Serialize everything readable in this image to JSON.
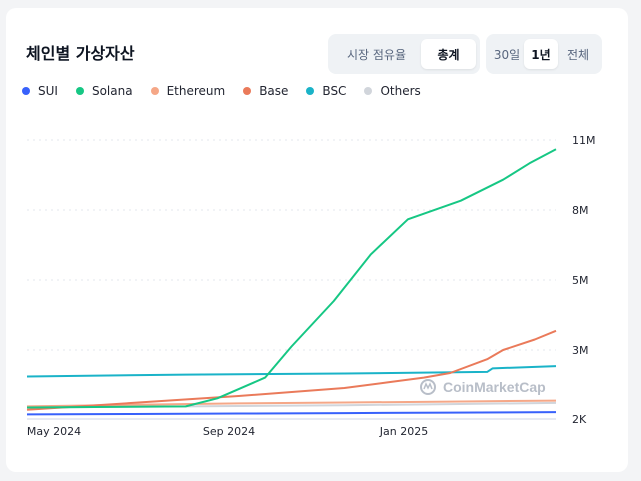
{
  "header": {
    "title": "체인별 가상자산",
    "view_toggle": [
      "시장 점유율",
      "총계"
    ],
    "active_view": 1,
    "range_toggle": [
      "30일",
      "1년",
      "전체"
    ],
    "active_range": 1
  },
  "watermark": "CoinMarketCap",
  "chart_data": {
    "type": "line",
    "x_ticks": [
      "May 2024",
      "Sep 2024",
      "Jan 2025"
    ],
    "y_ticks": [
      "11M",
      "8M",
      "5M",
      "3M",
      "2K"
    ],
    "y_tick_values": [
      11000000,
      8000000,
      5000000,
      3000000,
      2000
    ],
    "ylim": [
      2000,
      11000000
    ],
    "y_axis_side": "right",
    "grid": true,
    "legend_position": "top-left",
    "series": [
      {
        "name": "SUI",
        "color": "#3861fb",
        "points": [
          [
            0,
            200000
          ],
          [
            0.2,
            220000
          ],
          [
            0.4,
            240000
          ],
          [
            0.6,
            260000
          ],
          [
            0.8,
            280000
          ],
          [
            1.0,
            300000
          ]
        ]
      },
      {
        "name": "Solana",
        "color": "#16c784",
        "points": [
          [
            0,
            500000
          ],
          [
            0.3,
            550000
          ],
          [
            0.36,
            900000
          ],
          [
            0.45,
            1800000
          ],
          [
            0.5,
            3100000
          ],
          [
            0.58,
            4400000
          ],
          [
            0.65,
            6100000
          ],
          [
            0.72,
            7600000
          ],
          [
            0.82,
            8400000
          ],
          [
            0.9,
            9300000
          ],
          [
            0.95,
            10000000
          ],
          [
            1.0,
            10600000
          ]
        ]
      },
      {
        "name": "Ethereum",
        "color": "#f5a787",
        "points": [
          [
            0,
            550000
          ],
          [
            0.2,
            620000
          ],
          [
            0.4,
            680000
          ],
          [
            0.6,
            720000
          ],
          [
            0.8,
            760000
          ],
          [
            1.0,
            800000
          ]
        ]
      },
      {
        "name": "Base",
        "color": "#ea7a5a",
        "points": [
          [
            0,
            400000
          ],
          [
            0.2,
            700000
          ],
          [
            0.4,
            1000000
          ],
          [
            0.6,
            1350000
          ],
          [
            0.75,
            1800000
          ],
          [
            0.8,
            2000000
          ],
          [
            0.87,
            2600000
          ],
          [
            0.9,
            3000000
          ],
          [
            0.96,
            3300000
          ],
          [
            1.0,
            3550000
          ]
        ]
      },
      {
        "name": "BSC",
        "color": "#1ab3c8",
        "points": [
          [
            0,
            1850000
          ],
          [
            0.3,
            1930000
          ],
          [
            0.6,
            1980000
          ],
          [
            0.87,
            2050000
          ],
          [
            0.88,
            2200000
          ],
          [
            1.0,
            2300000
          ]
        ]
      },
      {
        "name": "Others",
        "color": "#d1d5db",
        "points": [
          [
            0,
            500000
          ],
          [
            0.3,
            550000
          ],
          [
            0.6,
            600000
          ],
          [
            0.8,
            650000
          ],
          [
            1.0,
            700000
          ]
        ]
      }
    ]
  }
}
